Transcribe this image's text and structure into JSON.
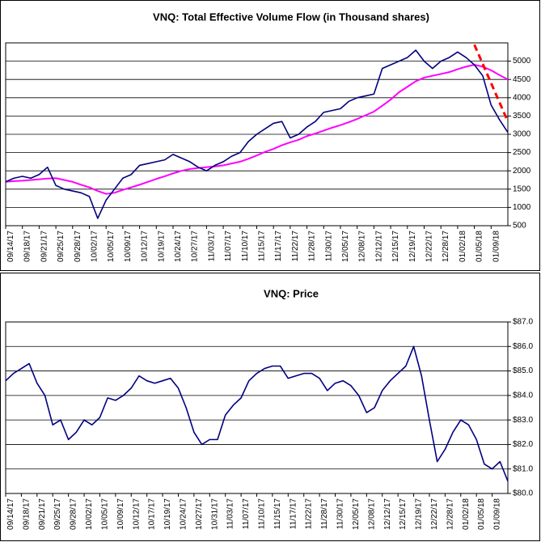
{
  "chart_data": [
    {
      "type": "line",
      "title": "VNQ: Total Effective Volume Flow (in Thousand shares)",
      "x": [
        0,
        2,
        4,
        6,
        8,
        10,
        12,
        14,
        16,
        18,
        20,
        22,
        24,
        26,
        28,
        30,
        32,
        34,
        36,
        38,
        40,
        42,
        44,
        46,
        48,
        50,
        52,
        54,
        56,
        58,
        60,
        62,
        64,
        66,
        68,
        70,
        72,
        74,
        76,
        78,
        80,
        82,
        84,
        86,
        88,
        90,
        92,
        94,
        96,
        98,
        100,
        102,
        104,
        106,
        108,
        110,
        112,
        114,
        116,
        118,
        120
      ],
      "xlim": [
        0,
        120
      ],
      "xticks": [
        {
          "value": 0,
          "label": "09/14/17"
        },
        {
          "value": 4,
          "label": "09/18/17"
        },
        {
          "value": 8,
          "label": "09/21/17"
        },
        {
          "value": 12,
          "label": "09/25/17"
        },
        {
          "value": 16,
          "label": "09/28/17"
        },
        {
          "value": 20,
          "label": "10/02/17"
        },
        {
          "value": 24,
          "label": "10/05/17"
        },
        {
          "value": 28,
          "label": "10/09/17"
        },
        {
          "value": 32,
          "label": "10/12/17"
        },
        {
          "value": 36,
          "label": "10/19/17"
        },
        {
          "value": 40,
          "label": "10/24/17"
        },
        {
          "value": 44,
          "label": "10/27/17"
        },
        {
          "value": 48,
          "label": "11/03/17"
        },
        {
          "value": 52,
          "label": "11/07/17"
        },
        {
          "value": 56,
          "label": "11/10/17"
        },
        {
          "value": 60,
          "label": "11/15/17"
        },
        {
          "value": 64,
          "label": "11/17/17"
        },
        {
          "value": 68,
          "label": "11/22/17"
        },
        {
          "value": 72,
          "label": "11/28/17"
        },
        {
          "value": 76,
          "label": "11/30/17"
        },
        {
          "value": 80,
          "label": "12/05/17"
        },
        {
          "value": 84,
          "label": "12/08/17"
        },
        {
          "value": 88,
          "label": "12/12/17"
        },
        {
          "value": 92,
          "label": "12/15/17"
        },
        {
          "value": 96,
          "label": "12/19/17"
        },
        {
          "value": 100,
          "label": "12/22/17"
        },
        {
          "value": 104,
          "label": "12/28/17"
        },
        {
          "value": 108,
          "label": "01/02/18"
        },
        {
          "value": 112,
          "label": "01/05/18"
        },
        {
          "value": 116,
          "label": "01/09/18"
        }
      ],
      "ylim": [
        500,
        5500
      ],
      "yticks": [
        500,
        1000,
        1500,
        2000,
        2500,
        3000,
        3500,
        4000,
        4500,
        5000
      ],
      "grid": true,
      "y_axis_side": "right",
      "series": [
        {
          "color": "#ff00ff",
          "width": 2,
          "values": [
            1700,
            1720,
            1730,
            1750,
            1770,
            1790,
            1800,
            1750,
            1700,
            1620,
            1550,
            1450,
            1370,
            1400,
            1480,
            1550,
            1620,
            1700,
            1780,
            1850,
            1930,
            2000,
            2050,
            2080,
            2100,
            2120,
            2150,
            2200,
            2250,
            2330,
            2420,
            2520,
            2600,
            2700,
            2780,
            2850,
            2950,
            3020,
            3100,
            3180,
            3250,
            3330,
            3420,
            3520,
            3620,
            3780,
            3950,
            4150,
            4300,
            4450,
            4550,
            4600,
            4650,
            4700,
            4780,
            4850,
            4900,
            4850,
            4750,
            4620,
            4500
          ]
        },
        {
          "color": "#000080",
          "width": 1.6,
          "values": [
            1700,
            1800,
            1850,
            1800,
            1900,
            2100,
            1600,
            1500,
            1450,
            1400,
            1300,
            700,
            1200,
            1500,
            1800,
            1900,
            2150,
            2200,
            2250,
            2300,
            2450,
            2350,
            2250,
            2100,
            2000,
            2150,
            2250,
            2400,
            2500,
            2800,
            3000,
            3150,
            3300,
            3350,
            2900,
            3000,
            3200,
            3350,
            3600,
            3650,
            3700,
            3900,
            4000,
            4050,
            4100,
            4800,
            4900,
            5000,
            5100,
            5300,
            5000,
            4800,
            5000,
            5100,
            5250,
            5100,
            4900,
            4600,
            3800,
            3400,
            3050
          ]
        },
        {
          "color": "#ff0000",
          "width": 3,
          "dashed": true,
          "x": [
            112,
            120
          ],
          "values": [
            5450,
            3350
          ]
        }
      ]
    },
    {
      "type": "line",
      "title": "VNQ: Price",
      "x": [
        0,
        2,
        4,
        6,
        8,
        10,
        12,
        14,
        16,
        18,
        20,
        22,
        24,
        26,
        28,
        30,
        32,
        34,
        36,
        38,
        40,
        42,
        44,
        46,
        48,
        50,
        52,
        54,
        56,
        58,
        60,
        62,
        64,
        66,
        68,
        70,
        72,
        74,
        76,
        78,
        80,
        82,
        84,
        86,
        88,
        90,
        92,
        94,
        96,
        98,
        100,
        102,
        104,
        106,
        108,
        110,
        112,
        114,
        116,
        118,
        120,
        122,
        124,
        126,
        128
      ],
      "xlim": [
        0,
        128
      ],
      "xticks": [
        {
          "value": 0,
          "label": "09/14/17"
        },
        {
          "value": 4,
          "label": "09/18/17"
        },
        {
          "value": 8,
          "label": "09/21/17"
        },
        {
          "value": 12,
          "label": "09/25/17"
        },
        {
          "value": 16,
          "label": "09/28/17"
        },
        {
          "value": 20,
          "label": "10/02/17"
        },
        {
          "value": 24,
          "label": "10/05/17"
        },
        {
          "value": 28,
          "label": "10/09/17"
        },
        {
          "value": 32,
          "label": "10/12/17"
        },
        {
          "value": 36,
          "label": "10/17/17"
        },
        {
          "value": 40,
          "label": "10/19/17"
        },
        {
          "value": 44,
          "label": "10/24/17"
        },
        {
          "value": 48,
          "label": "10/27/17"
        },
        {
          "value": 52,
          "label": "10/31/17"
        },
        {
          "value": 56,
          "label": "11/03/17"
        },
        {
          "value": 60,
          "label": "11/07/17"
        },
        {
          "value": 64,
          "label": "11/10/17"
        },
        {
          "value": 68,
          "label": "11/15/17"
        },
        {
          "value": 72,
          "label": "11/17/17"
        },
        {
          "value": 76,
          "label": "11/22/17"
        },
        {
          "value": 80,
          "label": "11/28/17"
        },
        {
          "value": 84,
          "label": "11/30/17"
        },
        {
          "value": 88,
          "label": "12/05/17"
        },
        {
          "value": 92,
          "label": "12/08/17"
        },
        {
          "value": 96,
          "label": "12/12/17"
        },
        {
          "value": 100,
          "label": "12/15/17"
        },
        {
          "value": 104,
          "label": "12/19/17"
        },
        {
          "value": 108,
          "label": "12/22/17"
        },
        {
          "value": 112,
          "label": "12/28/17"
        },
        {
          "value": 116,
          "label": "01/02/18"
        },
        {
          "value": 120,
          "label": "01/05/18"
        },
        {
          "value": 124,
          "label": "01/09/18"
        }
      ],
      "ylim": [
        80,
        87
      ],
      "yticks": [
        {
          "value": 80,
          "label": "$80.0"
        },
        {
          "value": 81,
          "label": "$81.0"
        },
        {
          "value": 82,
          "label": "$82.0"
        },
        {
          "value": 83,
          "label": "$83.0"
        },
        {
          "value": 84,
          "label": "$84.0"
        },
        {
          "value": 85,
          "label": "$85.0"
        },
        {
          "value": 86,
          "label": "$86.0"
        },
        {
          "value": 87,
          "label": "$87.0"
        }
      ],
      "grid": true,
      "y_axis_side": "right",
      "series": [
        {
          "color": "#000080",
          "width": 1.6,
          "values": [
            84.6,
            84.9,
            85.1,
            85.3,
            84.5,
            84.0,
            82.8,
            83.0,
            82.2,
            82.5,
            83.0,
            82.8,
            83.1,
            83.9,
            83.8,
            84.0,
            84.3,
            84.8,
            84.6,
            84.5,
            84.6,
            84.7,
            84.3,
            83.5,
            82.5,
            82.0,
            82.2,
            82.2,
            83.2,
            83.6,
            83.9,
            84.6,
            84.9,
            85.1,
            85.2,
            85.2,
            84.7,
            84.8,
            84.9,
            84.9,
            84.7,
            84.2,
            84.5,
            84.6,
            84.4,
            84.0,
            83.3,
            83.5,
            84.2,
            84.6,
            84.9,
            85.2,
            86.0,
            84.8,
            83.0,
            81.3,
            81.8,
            82.5,
            83.0,
            82.8,
            82.2,
            81.2,
            81.0,
            81.3,
            80.5
          ]
        }
      ]
    }
  ]
}
